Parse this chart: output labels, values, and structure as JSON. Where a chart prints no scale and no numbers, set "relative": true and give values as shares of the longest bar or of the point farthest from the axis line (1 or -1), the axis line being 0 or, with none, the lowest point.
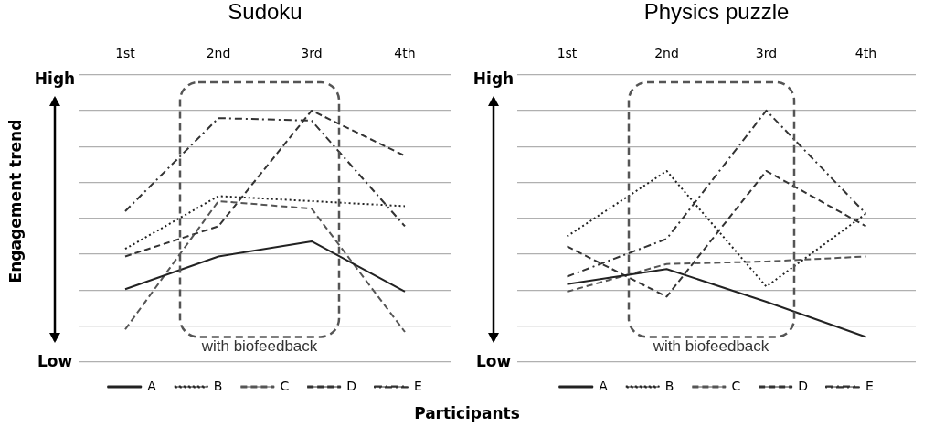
{
  "chart_data": [
    {
      "type": "line",
      "title": "Sudoku",
      "ylabel": "Engagement trend",
      "xlabel": "Participants",
      "relative": true,
      "categories": [
        "1st",
        "2nd",
        "3rd",
        "4th"
      ],
      "grid": "y",
      "legend": "bottom",
      "marker": "none",
      "annotations": [
        "High",
        "Low",
        "with biofeedback"
      ],
      "series": [
        {
          "name": "A",
          "color": "#222222",
          "line_style": "solid",
          "values": [
            0.29,
            0.42,
            0.48,
            0.28
          ]
        },
        {
          "name": "B",
          "color": "#222222",
          "line_style": "dotted",
          "values": [
            0.45,
            0.66,
            0.64,
            0.62
          ]
        },
        {
          "name": "C",
          "color": "#555555",
          "line_style": "dashed",
          "values": [
            0.13,
            0.64,
            0.61,
            0.12
          ]
        },
        {
          "name": "D",
          "color": "#333333",
          "line_style": "dashed",
          "values": [
            0.42,
            0.54,
            1,
            0.82
          ]
        },
        {
          "name": "E",
          "color": "#333333",
          "line_style": "dashdot",
          "values": [
            0.6,
            0.97,
            0.96,
            0.54
          ]
        }
      ]
    },
    {
      "type": "line",
      "title": "Physics puzzle",
      "relative": true,
      "categories": [
        "1st",
        "2nd",
        "3rd",
        "4th"
      ],
      "grid": "y",
      "legend": "bottom",
      "marker": "none",
      "annotations": [
        "High",
        "Low",
        "with biofeedback"
      ],
      "series": [
        {
          "name": "A",
          "color": "#222222",
          "line_style": "solid",
          "values": [
            0.31,
            0.37,
            0.24,
            0.1
          ]
        },
        {
          "name": "B",
          "color": "#222222",
          "line_style": "dotted",
          "values": [
            0.5,
            0.76,
            0.3,
            0.59
          ]
        },
        {
          "name": "C",
          "color": "#555555",
          "line_style": "dashed",
          "values": [
            0.28,
            0.39,
            0.4,
            0.42
          ]
        },
        {
          "name": "D",
          "color": "#333333",
          "line_style": "dashed",
          "values": [
            0.46,
            0.26,
            0.76,
            0.54
          ]
        },
        {
          "name": "E",
          "color": "#333333",
          "line_style": "dashdot",
          "values": [
            0.34,
            0.49,
            1,
            0.59
          ]
        }
      ]
    }
  ]
}
